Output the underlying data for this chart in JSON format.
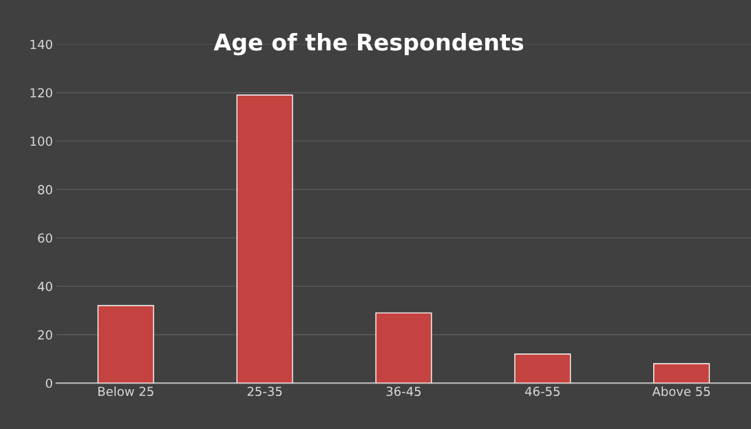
{
  "chart_data": {
    "type": "bar",
    "title": "Age of the Respondents",
    "categories": [
      "Below 25",
      "25-35",
      "36-45",
      "46-55",
      "Above 55"
    ],
    "values": [
      32,
      119,
      29,
      12,
      8
    ],
    "color": "#c4423f",
    "ylim": [
      0,
      140
    ],
    "yticks": [
      0,
      20,
      40,
      60,
      80,
      100,
      120,
      140
    ],
    "grid": "y"
  }
}
